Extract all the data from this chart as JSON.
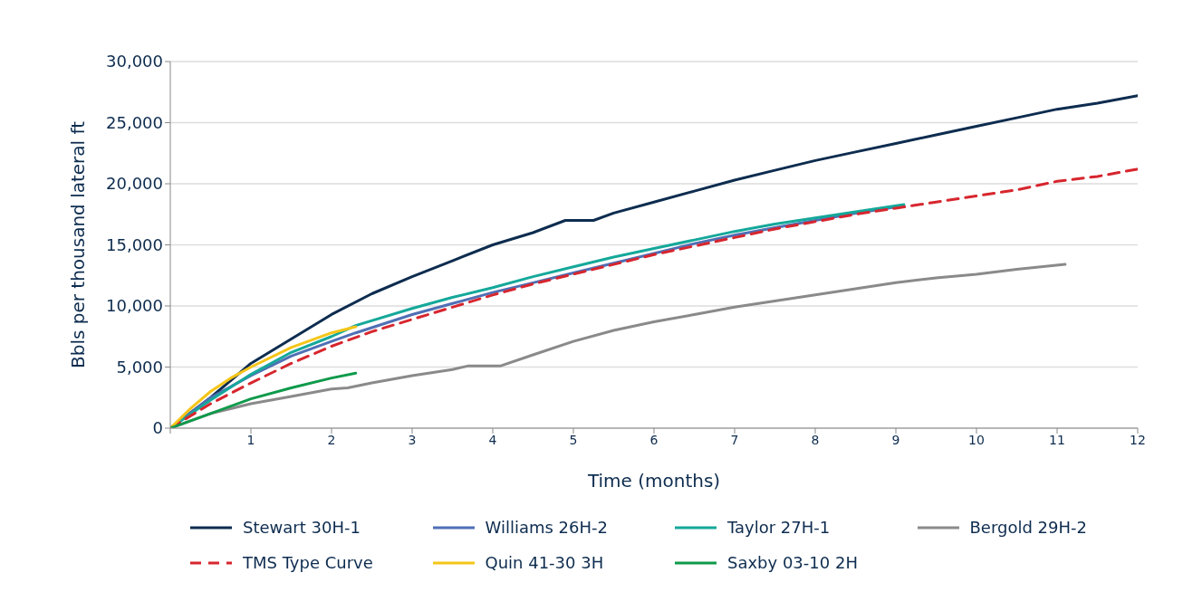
{
  "chart_data": {
    "type": "line",
    "xlabel": "Time (months)",
    "ylabel": "Bbls per thousand lateral ft",
    "xlim": [
      0,
      12
    ],
    "xticks": [
      {
        "value": 0,
        "label": null
      },
      1,
      2,
      3,
      4,
      5,
      6,
      7,
      8,
      9,
      10,
      11,
      12
    ],
    "ylim": [
      0,
      30000
    ],
    "yticks": [
      {
        "value": 0,
        "label": "0"
      },
      {
        "value": 5000,
        "label": "5,000"
      },
      {
        "value": 10000,
        "label": "10,000"
      },
      {
        "value": 15000,
        "label": "15,000"
      },
      {
        "value": 20000,
        "label": "20,000"
      },
      {
        "value": 25000,
        "label": "25,000"
      },
      {
        "value": 30000,
        "label": "30,000"
      }
    ],
    "grid": "y",
    "legend": "bottom",
    "marker": "none",
    "series": [
      {
        "name": "Stewart 30H-1",
        "color": "#0d2c4f",
        "line_style": "solid",
        "x": [
          0,
          0.5,
          1,
          1.5,
          2,
          2.5,
          3,
          3.5,
          4,
          4.5,
          4.9,
          5.25,
          5.5,
          6,
          6.5,
          7,
          7.5,
          8,
          8.5,
          9,
          9.5,
          10,
          10.5,
          11,
          11.5,
          12
        ],
        "values": [
          0,
          2500,
          5300,
          7300,
          9300,
          11000,
          12400,
          13700,
          15000,
          16000,
          17000,
          17000,
          17600,
          18500,
          19400,
          20300,
          21100,
          21900,
          22600,
          23300,
          24000,
          24700,
          25400,
          26100,
          26600,
          27200
        ]
      },
      {
        "name": "Williams 26H-2",
        "color": "#4f6fb5",
        "line_style": "solid",
        "x": [
          0,
          0.5,
          1,
          1.5,
          2,
          2.3,
          3,
          3.5,
          4,
          4.5,
          5,
          5.5,
          6,
          6.5,
          7,
          7.5,
          8,
          8.5,
          9.1
        ],
        "values": [
          0,
          2500,
          4300,
          5900,
          7100,
          7800,
          9300,
          10200,
          11100,
          11900,
          12700,
          13500,
          14300,
          15100,
          15800,
          16400,
          17000,
          17600,
          18200
        ]
      },
      {
        "name": "Taylor 27H-1",
        "color": "#14a89a",
        "line_style": "solid",
        "x": [
          0,
          0.5,
          1,
          1.5,
          2,
          2.3,
          3,
          3.5,
          4,
          4.5,
          5,
          5.5,
          6,
          6.5,
          7,
          7.5,
          8,
          8.5,
          9.1
        ],
        "values": [
          0,
          2300,
          4400,
          6200,
          7500,
          8400,
          9800,
          10700,
          11500,
          12400,
          13200,
          14000,
          14700,
          15400,
          16100,
          16700,
          17200,
          17700,
          18300
        ]
      },
      {
        "name": "Bergold 29H-2",
        "color": "#8a8a8a",
        "line_style": "solid",
        "x": [
          0,
          0.5,
          1,
          1.5,
          2,
          2.2,
          2.5,
          3,
          3.5,
          3.7,
          4.1,
          4.5,
          5,
          5.5,
          6,
          6.5,
          7,
          7.5,
          8,
          8.5,
          9,
          9.5,
          10,
          10.5,
          11.1
        ],
        "values": [
          0,
          1200,
          2000,
          2600,
          3200,
          3300,
          3700,
          4300,
          4800,
          5100,
          5100,
          6000,
          7100,
          8000,
          8700,
          9300,
          9900,
          10400,
          10900,
          11400,
          11900,
          12300,
          12600,
          13000,
          13400
        ]
      },
      {
        "name": "TMS Type Curve",
        "color": "#d7262e",
        "line_style": "dashed",
        "x": [
          0,
          0.5,
          1,
          1.5,
          2,
          2.5,
          3,
          3.5,
          4,
          4.5,
          5,
          5.5,
          6,
          6.5,
          7,
          7.5,
          8,
          8.5,
          9,
          9.5,
          10,
          10.5,
          11,
          11.5,
          12
        ],
        "values": [
          0,
          2000,
          3700,
          5300,
          6700,
          7900,
          8900,
          9900,
          10900,
          11800,
          12600,
          13400,
          14200,
          14900,
          15600,
          16300,
          16900,
          17500,
          18000,
          18500,
          19000,
          19500,
          20200,
          20600,
          21200
        ]
      },
      {
        "name": "Quin 41-30 3H",
        "color": "#f5c518",
        "line_style": "solid",
        "x": [
          0,
          0.25,
          0.5,
          0.75,
          1,
          1.5,
          2,
          2.3
        ],
        "values": [
          0,
          1600,
          3000,
          4100,
          5000,
          6600,
          7800,
          8300
        ]
      },
      {
        "name": "Saxby 03-10 2H",
        "color": "#0f9a4b",
        "line_style": "solid",
        "x": [
          0,
          0.5,
          1,
          1.5,
          2,
          2.3
        ],
        "values": [
          0,
          1200,
          2400,
          3300,
          4100,
          4500
        ]
      }
    ]
  }
}
